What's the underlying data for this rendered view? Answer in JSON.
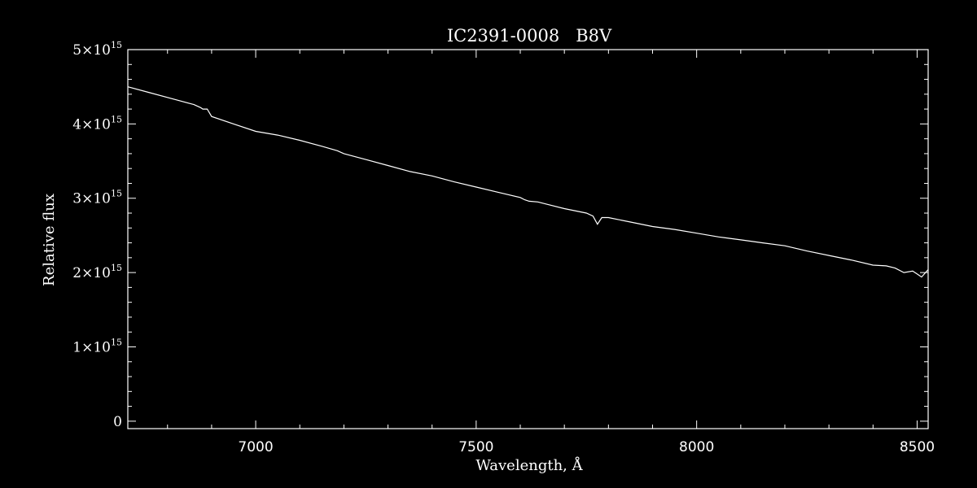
{
  "chart_data": {
    "type": "line",
    "title": "IC2391-0008   B8V",
    "xlabel": "Wavelength, Å",
    "ylabel": "Relative flux",
    "xlim": [
      6710,
      8525
    ],
    "ylim": [
      -100000000000000.0,
      5000000000000000.0
    ],
    "x_ticks": [
      7000,
      7500,
      8000,
      8500
    ],
    "x_tick_labels": [
      "7000",
      "7500",
      "8000",
      "8500"
    ],
    "y_ticks": [
      0,
      1000000000000000.0,
      2000000000000000.0,
      3000000000000000.0,
      4000000000000000.0,
      5000000000000000.0
    ],
    "y_tick_labels": [
      {
        "mantissa": "0",
        "exp": ""
      },
      {
        "mantissa": "1×10",
        "exp": "15"
      },
      {
        "mantissa": "2×10",
        "exp": "15"
      },
      {
        "mantissa": "3×10",
        "exp": "15"
      },
      {
        "mantissa": "4×10",
        "exp": "15"
      },
      {
        "mantissa": "5×10",
        "exp": "15"
      }
    ],
    "grid": false,
    "colors": {
      "background": "#000000",
      "foreground": "#ffffff"
    },
    "series": [
      {
        "x": [
          6710,
          6760,
          6810,
          6860,
          6875,
          6880,
          6890,
          6900,
          6950,
          7000,
          7050,
          7100,
          7150,
          7185,
          7200,
          7250,
          7300,
          7350,
          7400,
          7450,
          7500,
          7550,
          7600,
          7610,
          7620,
          7640,
          7660,
          7700,
          7750,
          7765,
          7775,
          7785,
          7800,
          7850,
          7900,
          7950,
          8000,
          8050,
          8100,
          8150,
          8200,
          8250,
          8300,
          8350,
          8400,
          8430,
          8450,
          8470,
          8490,
          8500,
          8510,
          8525
        ],
        "y": [
          4500000000000000.0,
          4420000000000000.0,
          4340000000000000.0,
          4260000000000000.0,
          4220000000000000.0,
          4200000000000000.0,
          4200000000000000.0,
          4100000000000000.0,
          4000000000000000.0,
          3900000000000000.0,
          3850000000000000.0,
          3780000000000000.0,
          3700000000000000.0,
          3640000000000000.0,
          3600000000000000.0,
          3520000000000000.0,
          3440000000000000.0,
          3360000000000000.0,
          3300000000000000.0,
          3220000000000000.0,
          3150000000000000.0,
          3080000000000000.0,
          3010000000000000.0,
          2980000000000000.0,
          2960000000000000.0,
          2950000000000000.0,
          2920000000000000.0,
          2860000000000000.0,
          2800000000000000.0,
          2760000000000000.0,
          2650000000000000.0,
          2740000000000000.0,
          2740000000000000.0,
          2680000000000000.0,
          2620000000000000.0,
          2580000000000000.0,
          2530000000000000.0,
          2480000000000000.0,
          2440000000000000.0,
          2400000000000000.0,
          2360000000000000.0,
          2290000000000000.0,
          2230000000000000.0,
          2170000000000000.0,
          2100000000000000.0,
          2090000000000000.0,
          2060000000000000.0,
          2000000000000000.0,
          2020000000000000.0,
          1980000000000000.0,
          1940000000000000.0,
          2040000000000000.0
        ]
      }
    ]
  }
}
